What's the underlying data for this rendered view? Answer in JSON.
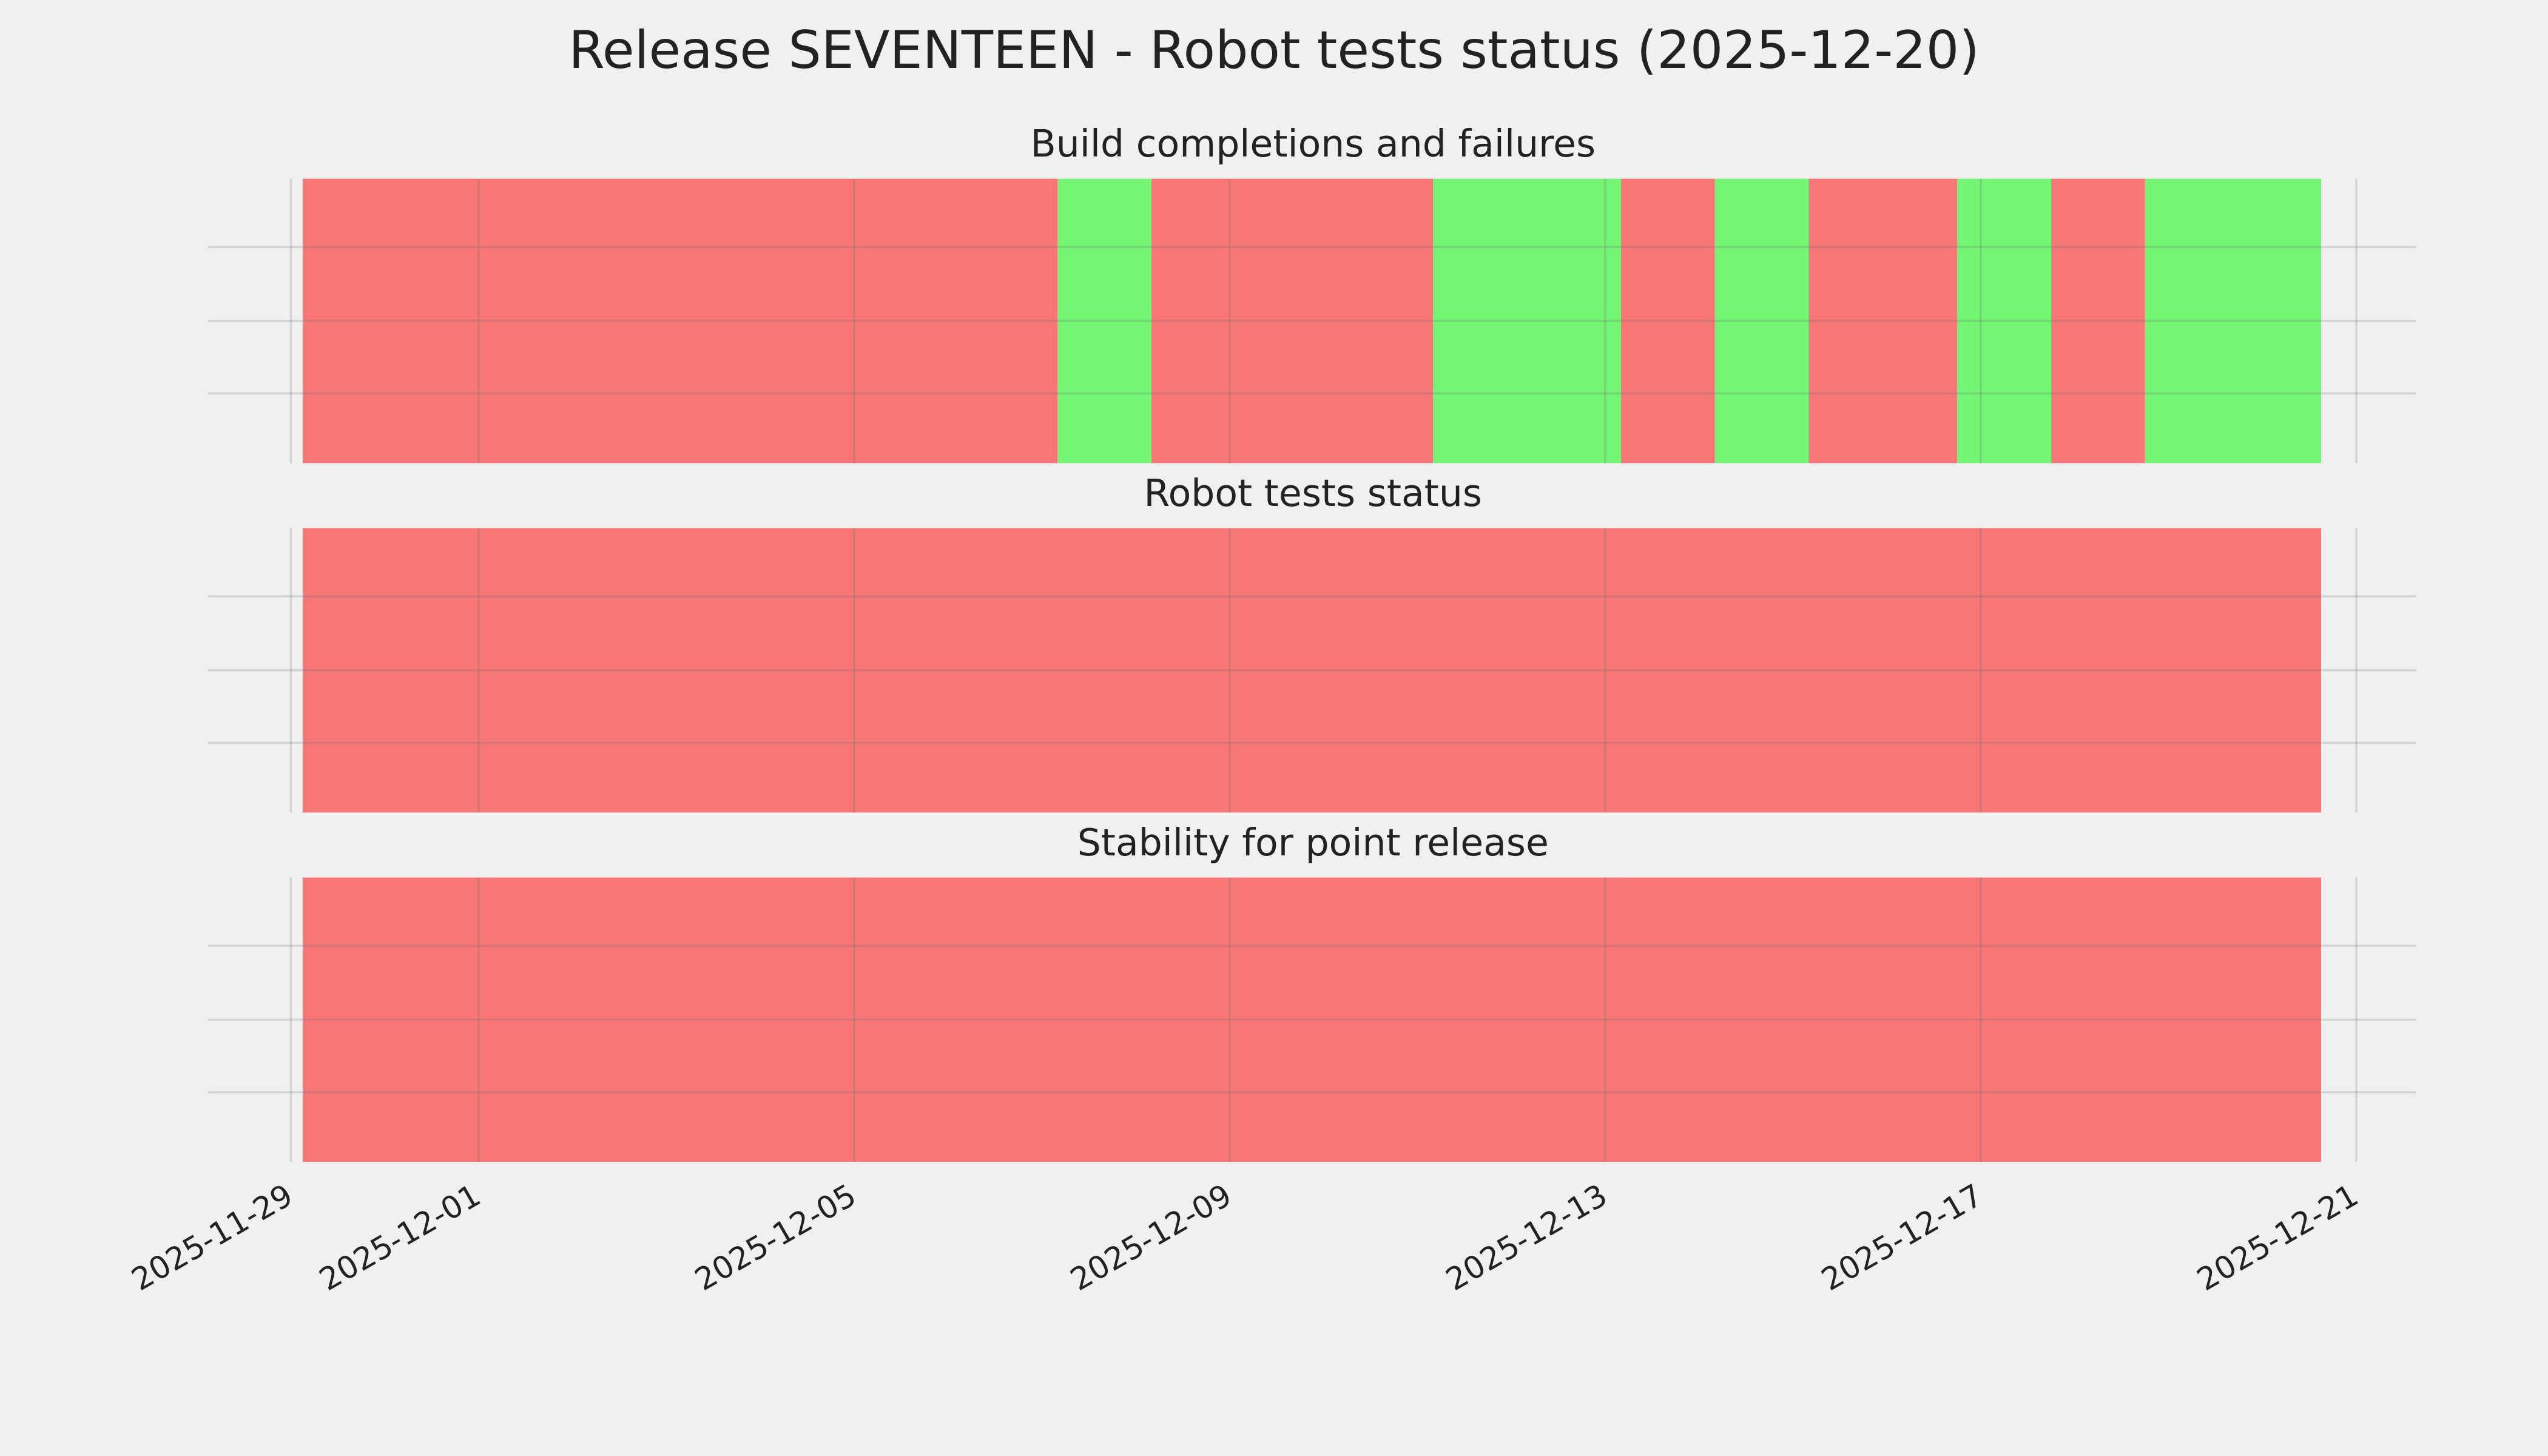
{
  "title": "Release SEVENTEEN - Robot tests status (2025-12-20)",
  "chart_data": [
    {
      "type": "timeline",
      "title": "Build completions and failures",
      "starts": [
        "2025-11-29T03:00",
        "2025-12-07T04:00",
        "2025-12-08T04:00",
        "2025-12-11T04:00",
        "2025-12-13T04:00",
        "2025-12-14T04:00",
        "2025-12-15T04:00",
        "2025-12-16T18:00",
        "2025-12-17T18:00",
        "2025-12-18T18:00"
      ],
      "ends": [
        "2025-12-07T04:00",
        "2025-12-08T04:00",
        "2025-12-11T04:00",
        "2025-12-13T04:00",
        "2025-12-14T04:00",
        "2025-12-15T04:00",
        "2025-12-16T18:00",
        "2025-12-17T18:00",
        "2025-12-18T18:00",
        "2025-12-20T15:00"
      ],
      "colors": [
        "#f77777",
        "#74f574",
        "#f77777",
        "#74f574",
        "#f77777",
        "#74f574",
        "#f77777",
        "#74f574",
        "#f77777",
        "#74f574"
      ],
      "xlim": [
        "2025-11-29",
        "2025-12-21"
      ],
      "xticks": [
        "2025-11-29",
        "2025-12-01",
        "2025-12-05",
        "2025-12-09",
        "2025-12-13",
        "2025-12-17",
        "2025-12-21"
      ],
      "grid": true
    },
    {
      "type": "timeline",
      "title": "Robot tests status",
      "starts": [
        "2025-11-29T03:00"
      ],
      "ends": [
        "2025-12-20T15:00"
      ],
      "colors": [
        "#f77777"
      ],
      "xlim": [
        "2025-11-29",
        "2025-12-21"
      ],
      "xticks": [
        "2025-11-29",
        "2025-12-01",
        "2025-12-05",
        "2025-12-09",
        "2025-12-13",
        "2025-12-17",
        "2025-12-21"
      ],
      "grid": true
    },
    {
      "type": "timeline",
      "title": "Stability for point release",
      "starts": [
        "2025-11-29T03:00"
      ],
      "ends": [
        "2025-12-20T15:00"
      ],
      "colors": [
        "#f77777"
      ],
      "xlim": [
        "2025-11-29",
        "2025-12-21"
      ],
      "xticks": [
        "2025-11-29",
        "2025-12-01",
        "2025-12-05",
        "2025-12-09",
        "2025-12-13",
        "2025-12-17",
        "2025-12-21"
      ],
      "grid": true
    }
  ]
}
